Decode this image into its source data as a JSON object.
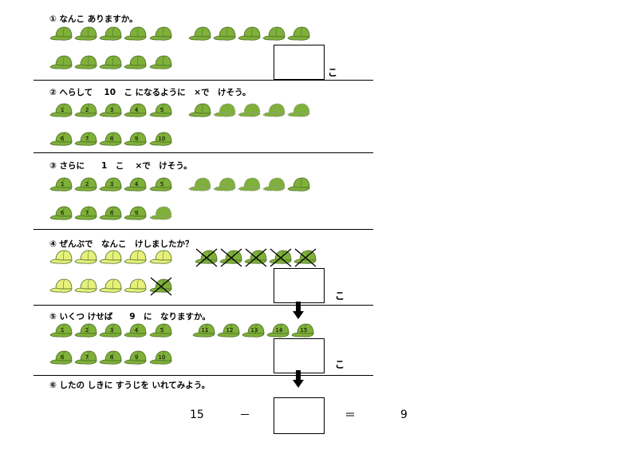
{
  "questions": [
    {
      "label": "① なんこ ありますか。",
      "unit": "こ"
    },
    {
      "label": "② へらして　 10　こ になるように　×で　けそう。"
    },
    {
      "label": "③ さらに　　1　こ　 ×で　けそう。"
    },
    {
      "label": "④ ぜんぶで　なんこ　けしましたか？",
      "unit": "こ"
    },
    {
      "label": "⑤ いくつ けせば　　9　に　なりますか。",
      "unit": "こ"
    },
    {
      "label": "⑥ したの しきに すうじを いれてみよう。"
    }
  ],
  "equation": {
    "left": "15",
    "op1": "－",
    "op2": "＝",
    "right": "9"
  },
  "cap_numbers": {
    "q2": [
      "1",
      "2",
      "3",
      "4",
      "5",
      "6",
      "7",
      "8",
      "9",
      "10"
    ],
    "q3": [
      "1",
      "2",
      "3",
      "4",
      "5",
      "6",
      "7",
      "8",
      "9"
    ],
    "q5a": [
      "1",
      "2",
      "3",
      "4",
      "5"
    ],
    "q5b": [
      "11",
      "12",
      "13",
      "14",
      "15"
    ],
    "q5c": [
      "6",
      "7",
      "8",
      "9",
      "10"
    ]
  },
  "colors": {
    "cap_green": "#7fb03a",
    "cap_yellow": "#e6f07a",
    "cap_outline": "#4a6b22"
  }
}
